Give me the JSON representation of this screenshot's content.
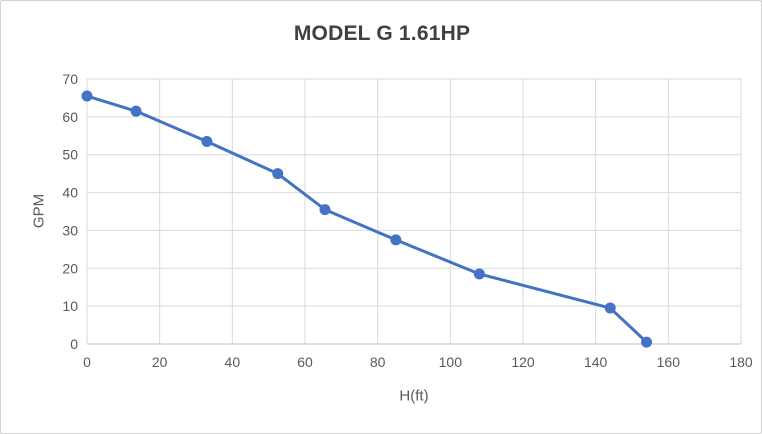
{
  "window": {
    "background": "#ffffff",
    "border_color": "#d2d2d2"
  },
  "chart_data": {
    "type": "line",
    "title": "MODEL G 1.61HP",
    "xlabel": "H(ft)",
    "ylabel": "GPM",
    "x": [
      0,
      13.5,
      33,
      52.5,
      65.5,
      85,
      108,
      144,
      154
    ],
    "y": [
      65.5,
      61.5,
      53.5,
      45,
      35.5,
      27.5,
      18.5,
      9.5,
      0.5
    ],
    "xlim": [
      0,
      180
    ],
    "ylim": [
      0,
      70
    ],
    "xticks": [
      0,
      20,
      40,
      60,
      80,
      100,
      120,
      140,
      160,
      180
    ],
    "yticks": [
      0,
      10,
      20,
      30,
      40,
      50,
      60,
      70
    ],
    "grid": true,
    "legend": "none",
    "marker": "circle",
    "line_color": "#4472c4",
    "gridline_color": "#d9d9d9",
    "axis_line_color": "#bfbfbf",
    "tick_label_color": "#595959",
    "title_color": "#404040"
  }
}
